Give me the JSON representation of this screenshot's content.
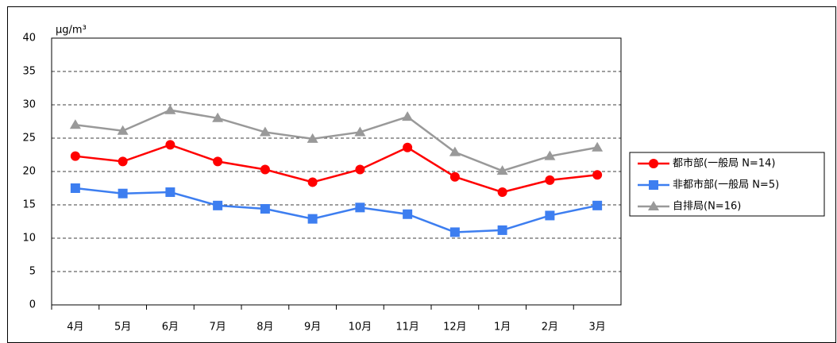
{
  "chart_data": {
    "type": "line",
    "y_label": "μg/m³",
    "categories": [
      "4月",
      "5月",
      "6月",
      "7月",
      "8月",
      "9月",
      "10月",
      "11月",
      "12月",
      "1月",
      "2月",
      "3月"
    ],
    "series": [
      {
        "name": "都市部(一般局 N=14)",
        "color": "#ff0000",
        "marker": "circle",
        "values": [
          22.3,
          21.5,
          24.0,
          21.5,
          20.3,
          18.4,
          20.3,
          23.6,
          19.2,
          16.9,
          18.7,
          19.5
        ]
      },
      {
        "name": "非都市部(一般局 N=5)",
        "color": "#3d7ef0",
        "marker": "square",
        "values": [
          17.5,
          16.7,
          16.9,
          14.9,
          14.4,
          12.9,
          14.6,
          13.6,
          10.9,
          11.2,
          13.4,
          14.9
        ]
      },
      {
        "name": "自排局(N=16)",
        "color": "#999999",
        "marker": "triangle",
        "values": [
          27.0,
          26.1,
          29.2,
          28.0,
          25.9,
          24.9,
          25.9,
          28.2,
          22.9,
          20.1,
          22.3,
          23.6
        ]
      }
    ],
    "ylim": [
      0,
      40
    ],
    "yticks": [
      0,
      5,
      10,
      15,
      20,
      25,
      30,
      35,
      40
    ],
    "grid": true,
    "legend": "right"
  }
}
